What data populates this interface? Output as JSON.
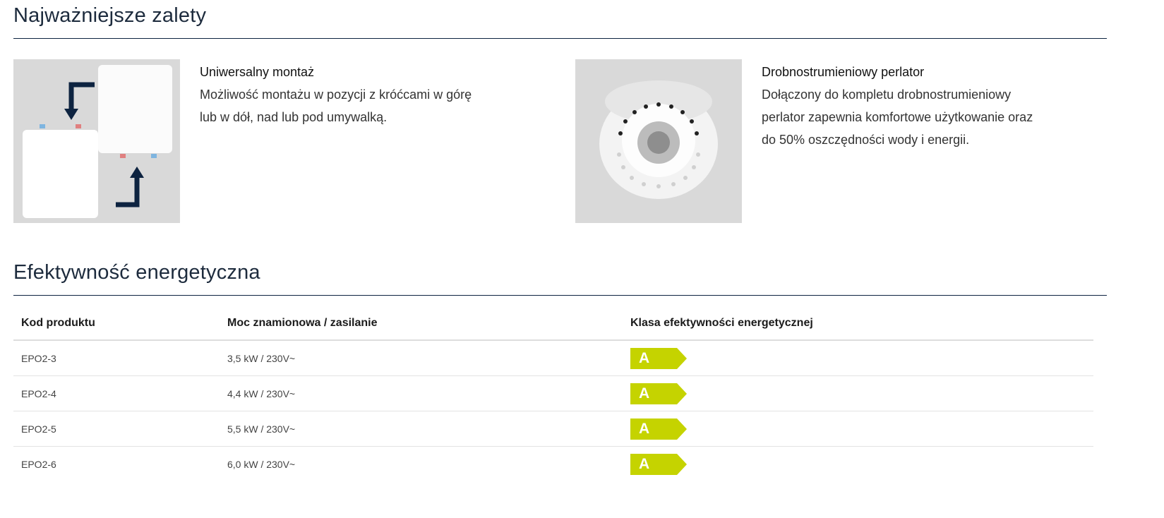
{
  "sections": {
    "advantages_title": "Najważniejsze zalety",
    "efficiency_title": "Efektywność energetyczna"
  },
  "features": [
    {
      "title": "Uniwersalny montaż",
      "lines": [
        "Możliwość montażu w pozycji z króćcami w górę",
        "lub w dół, nad lub pod umywalką."
      ]
    },
    {
      "title": "Drobnostrumieniowy perlator",
      "lines": [
        "Dołączony do kompletu drobnostrumieniowy",
        "perlator zapewnia komfortowe użytkowanie oraz",
        "do 50% oszczędności wody i energii."
      ]
    }
  ],
  "table": {
    "headers": [
      "Kod produktu",
      "Moc znamionowa / zasilanie",
      "Klasa efektywności energetycznej"
    ],
    "rows": [
      {
        "code": "EPO2-3",
        "power": "3,5 kW / 230V~",
        "class": "A"
      },
      {
        "code": "EPO2-4",
        "power": "4,4 kW / 230V~",
        "class": "A"
      },
      {
        "code": "EPO2-5",
        "power": "5,5 kW / 230V~",
        "class": "A"
      },
      {
        "code": "EPO2-6",
        "power": "6,0 kW / 230V~",
        "class": "A"
      }
    ]
  },
  "colors": {
    "accent_navy": "#0d2340",
    "energy_a": "#c5d300"
  }
}
